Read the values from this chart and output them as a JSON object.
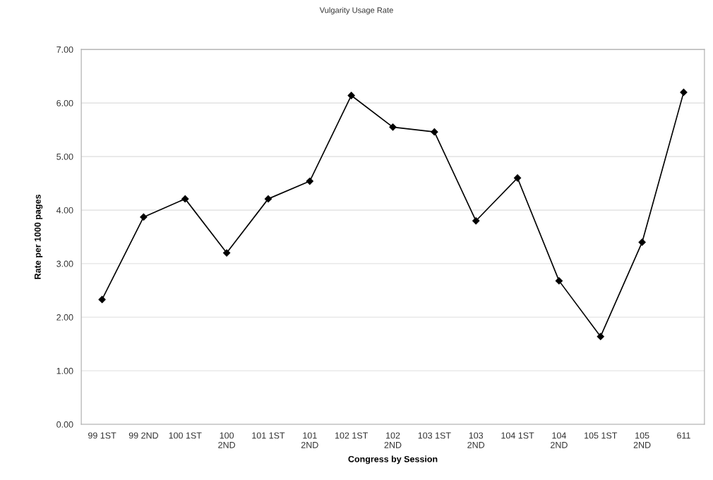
{
  "chart_data": {
    "type": "line",
    "title": "Vulgarity Usage Rate",
    "xlabel": "Congress by Session",
    "ylabel": "Rate per 1000 pages",
    "categories": [
      "99 1ST",
      "99 2ND",
      "100 1ST",
      "100\n2ND",
      "101 1ST",
      "101\n2ND",
      "102 1ST",
      "102\n2ND",
      "103 1ST",
      "103\n2ND",
      "104 1ST",
      "104\n2ND",
      "105 1ST",
      "105\n2ND",
      "611"
    ],
    "series": [
      {
        "color": "#000000",
        "values": [
          2.33,
          3.87,
          4.21,
          3.2,
          4.21,
          4.54,
          6.14,
          5.55,
          5.46,
          3.8,
          4.6,
          2.68,
          1.64,
          3.4,
          6.2
        ]
      }
    ],
    "ylim": [
      0,
      7
    ],
    "yticks": [
      {
        "value": 0,
        "label": "0.00"
      },
      {
        "value": 1,
        "label": "1.00"
      },
      {
        "value": 2,
        "label": "2.00"
      },
      {
        "value": 3,
        "label": "3.00"
      },
      {
        "value": 4,
        "label": "4.00"
      },
      {
        "value": 5,
        "label": "5.00"
      },
      {
        "value": 6,
        "label": "6.00"
      },
      {
        "value": 7,
        "label": "7.00"
      }
    ],
    "grid": "y",
    "marker": "diamond",
    "line_style": "solid",
    "legend": false
  }
}
